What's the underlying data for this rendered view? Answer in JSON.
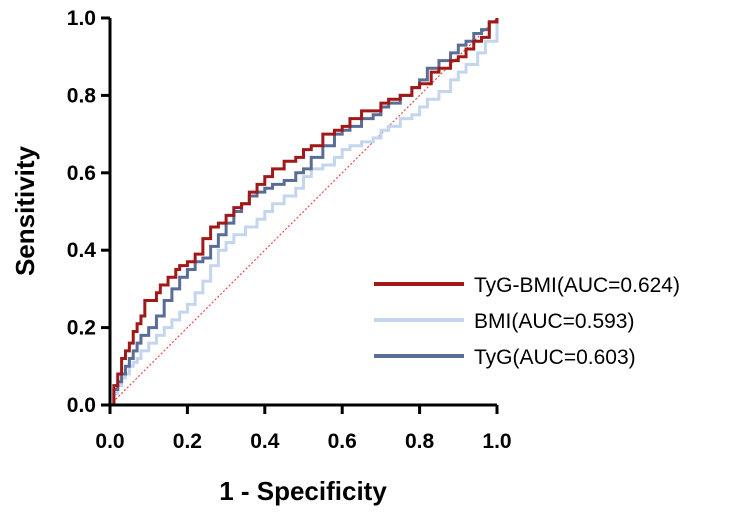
{
  "chart_data": {
    "type": "line",
    "title": "",
    "xlabel": "1 - Specificity",
    "ylabel": "Sensitivity",
    "xlim": [
      0,
      1
    ],
    "ylim": [
      0,
      1
    ],
    "xticks": [
      "0.0",
      "0.2",
      "0.4",
      "0.6",
      "0.8",
      "1.0"
    ],
    "yticks": [
      "0.0",
      "0.2",
      "0.4",
      "0.6",
      "0.8",
      "1.0"
    ],
    "grid": false,
    "legend_position": "bottom-right",
    "reference_line": {
      "name": "chance",
      "color": "#e0524a",
      "style": "dotted",
      "x": [
        0,
        1
      ],
      "y": [
        0,
        1
      ]
    },
    "series": [
      {
        "name": "TyG-BMI(AUC=0.624)",
        "color": "#a01818",
        "x": [
          0,
          0.01,
          0.02,
          0.03,
          0.04,
          0.05,
          0.06,
          0.07,
          0.08,
          0.09,
          0.1,
          0.12,
          0.13,
          0.15,
          0.17,
          0.18,
          0.2,
          0.22,
          0.24,
          0.26,
          0.28,
          0.3,
          0.32,
          0.34,
          0.36,
          0.38,
          0.4,
          0.42,
          0.45,
          0.48,
          0.5,
          0.52,
          0.55,
          0.58,
          0.6,
          0.62,
          0.65,
          0.68,
          0.7,
          0.72,
          0.75,
          0.78,
          0.8,
          0.83,
          0.85,
          0.88,
          0.9,
          0.92,
          0.94,
          0.96,
          0.98,
          1.0
        ],
        "y": [
          0,
          0.05,
          0.08,
          0.12,
          0.14,
          0.16,
          0.19,
          0.21,
          0.23,
          0.27,
          0.27,
          0.29,
          0.31,
          0.33,
          0.35,
          0.36,
          0.37,
          0.39,
          0.43,
          0.46,
          0.47,
          0.49,
          0.51,
          0.52,
          0.55,
          0.57,
          0.59,
          0.61,
          0.63,
          0.64,
          0.66,
          0.67,
          0.7,
          0.71,
          0.72,
          0.74,
          0.76,
          0.76,
          0.78,
          0.79,
          0.8,
          0.82,
          0.83,
          0.86,
          0.87,
          0.89,
          0.9,
          0.92,
          0.94,
          0.95,
          0.99,
          1.0
        ]
      },
      {
        "name": "BMI(AUC=0.593)",
        "color": "#c4d6ee",
        "x": [
          0,
          0.01,
          0.02,
          0.03,
          0.04,
          0.05,
          0.06,
          0.07,
          0.08,
          0.1,
          0.12,
          0.14,
          0.16,
          0.18,
          0.2,
          0.22,
          0.24,
          0.26,
          0.28,
          0.3,
          0.32,
          0.35,
          0.38,
          0.4,
          0.42,
          0.45,
          0.48,
          0.5,
          0.52,
          0.55,
          0.58,
          0.6,
          0.62,
          0.65,
          0.68,
          0.7,
          0.72,
          0.75,
          0.78,
          0.8,
          0.82,
          0.85,
          0.88,
          0.9,
          0.92,
          0.95,
          0.97,
          1.0
        ],
        "y": [
          0,
          0.03,
          0.05,
          0.07,
          0.08,
          0.1,
          0.11,
          0.12,
          0.14,
          0.16,
          0.18,
          0.2,
          0.22,
          0.24,
          0.26,
          0.29,
          0.32,
          0.36,
          0.4,
          0.42,
          0.44,
          0.46,
          0.48,
          0.5,
          0.52,
          0.54,
          0.56,
          0.59,
          0.61,
          0.62,
          0.64,
          0.66,
          0.67,
          0.68,
          0.69,
          0.71,
          0.72,
          0.74,
          0.75,
          0.77,
          0.79,
          0.81,
          0.84,
          0.86,
          0.88,
          0.91,
          0.94,
          1.0
        ]
      },
      {
        "name": "TyG(AUC=0.603)",
        "color": "#5a6d96",
        "x": [
          0,
          0.01,
          0.02,
          0.03,
          0.04,
          0.05,
          0.06,
          0.07,
          0.08,
          0.1,
          0.12,
          0.14,
          0.16,
          0.18,
          0.2,
          0.22,
          0.24,
          0.26,
          0.28,
          0.3,
          0.32,
          0.34,
          0.36,
          0.38,
          0.4,
          0.42,
          0.45,
          0.48,
          0.5,
          0.52,
          0.55,
          0.58,
          0.6,
          0.62,
          0.65,
          0.68,
          0.7,
          0.72,
          0.75,
          0.78,
          0.8,
          0.82,
          0.85,
          0.88,
          0.9,
          0.92,
          0.94,
          0.96,
          0.98,
          1.0
        ],
        "y": [
          0,
          0.04,
          0.06,
          0.08,
          0.1,
          0.12,
          0.14,
          0.16,
          0.18,
          0.2,
          0.23,
          0.27,
          0.3,
          0.33,
          0.35,
          0.37,
          0.38,
          0.41,
          0.44,
          0.47,
          0.5,
          0.52,
          0.54,
          0.55,
          0.56,
          0.57,
          0.58,
          0.6,
          0.61,
          0.64,
          0.67,
          0.7,
          0.71,
          0.72,
          0.74,
          0.75,
          0.77,
          0.78,
          0.8,
          0.82,
          0.84,
          0.87,
          0.89,
          0.91,
          0.93,
          0.94,
          0.96,
          0.97,
          0.99,
          1.0
        ]
      }
    ]
  }
}
